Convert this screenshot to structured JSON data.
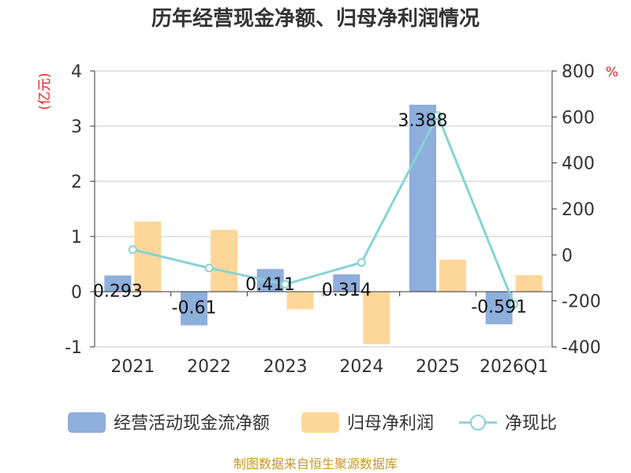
{
  "chart_data": {
    "type": "bar",
    "title": "历年经营现金净额、归母净利润情况",
    "categories": [
      "2021",
      "2022",
      "2023",
      "2024",
      "2025",
      "2026Q1"
    ],
    "left_axis": {
      "unit": "(亿元)",
      "ylim": [
        -1,
        4
      ],
      "ticks": [
        4,
        3,
        2,
        1,
        0,
        -1
      ]
    },
    "right_axis": {
      "unit": "%",
      "ylim": [
        -400,
        800
      ],
      "ticks": [
        800,
        600,
        400,
        200,
        0,
        -200,
        -400
      ]
    },
    "series": [
      {
        "name": "经营活动现金流净额",
        "type": "bar",
        "axis": "left",
        "color": "#8eaedb",
        "values": [
          0.293,
          -0.61,
          0.411,
          0.314,
          3.388,
          -0.591
        ],
        "labels": [
          "0.293",
          "-0.61",
          "0.411",
          "0.314",
          "3.388",
          "-0.591"
        ]
      },
      {
        "name": "归母净利润",
        "type": "bar",
        "axis": "left",
        "color": "#ffd699",
        "values": [
          1.27,
          1.12,
          -0.32,
          -0.95,
          0.58,
          0.3
        ]
      },
      {
        "name": "净现比",
        "type": "line",
        "axis": "right",
        "color": "#86d3d6",
        "values": [
          23,
          -57,
          -128,
          -33,
          606,
          -215
        ]
      }
    ],
    "legend_position": "bottom",
    "grid": true
  },
  "source_text": "制图数据来自恒生聚源数据库"
}
